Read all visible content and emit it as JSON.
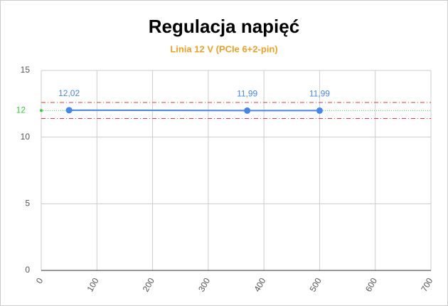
{
  "chart_data": {
    "type": "line",
    "title": "Regulacja napięć",
    "subtitle": "Linia 12 V (PCIe 6+2-pin)",
    "x": [
      50,
      370,
      500
    ],
    "series": [
      {
        "color": "#4285f4",
        "values": [
          12.02,
          11.99,
          11.99
        ],
        "value_labels": [
          "12,02",
          "11,99",
          "11,99"
        ]
      }
    ],
    "xlim": [
      0,
      700
    ],
    "xticks": [
      0,
      100,
      200,
      300,
      400,
      500,
      600,
      700
    ],
    "ylim": [
      0,
      15
    ],
    "yticks": [
      0,
      5,
      10,
      15
    ],
    "target": {
      "value": 12,
      "color": "#33cc33"
    },
    "limits": {
      "values": [
        12.6,
        11.4
      ],
      "color": "#e53935"
    },
    "grid": true
  }
}
